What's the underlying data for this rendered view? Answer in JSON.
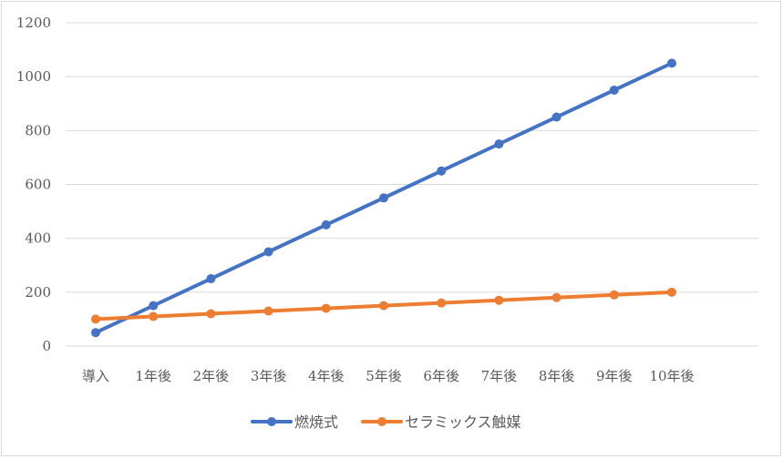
{
  "chart_data": {
    "type": "line",
    "title": "",
    "xlabel": "",
    "ylabel": "",
    "categories": [
      "導入",
      "1年後",
      "2年後",
      "3年後",
      "4年後",
      "5年後",
      "6年後",
      "7年後",
      "8年後",
      "9年後",
      "10年後"
    ],
    "ylim": [
      0,
      1200
    ],
    "yticks": [
      0,
      200,
      400,
      600,
      800,
      1000,
      1200
    ],
    "grid": true,
    "legend_position": "bottom",
    "series": [
      {
        "name": "燃焼式",
        "color": "#4472c4",
        "values": [
          50,
          150,
          250,
          350,
          450,
          550,
          650,
          750,
          850,
          950,
          1050
        ]
      },
      {
        "name": "セラミックス触媒",
        "color": "#ed7d31",
        "values": [
          100,
          110,
          120,
          130,
          140,
          150,
          160,
          170,
          180,
          190,
          200
        ]
      }
    ]
  }
}
